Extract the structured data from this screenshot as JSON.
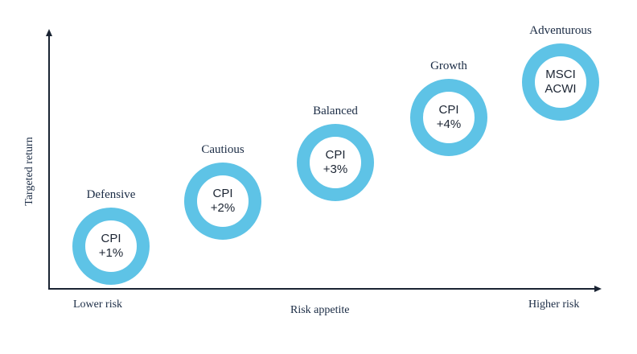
{
  "axes": {
    "y_label": "Targeted return",
    "x_label": "Risk appetite",
    "x_start_label": "Lower risk",
    "x_end_label": "Higher risk"
  },
  "colors": {
    "ring": "#5ec3e6",
    "text": "#1a2b44",
    "axis": "#1a2433"
  },
  "profiles": [
    {
      "name": "Defensive",
      "line1": "CPI",
      "line2": "+1%"
    },
    {
      "name": "Cautious",
      "line1": "CPI",
      "line2": "+2%"
    },
    {
      "name": "Balanced",
      "line1": "CPI",
      "line2": "+3%"
    },
    {
      "name": "Growth",
      "line1": "CPI",
      "line2": "+4%"
    },
    {
      "name": "Adventurous",
      "line1": "MSCI",
      "line2": "ACWI"
    }
  ]
}
